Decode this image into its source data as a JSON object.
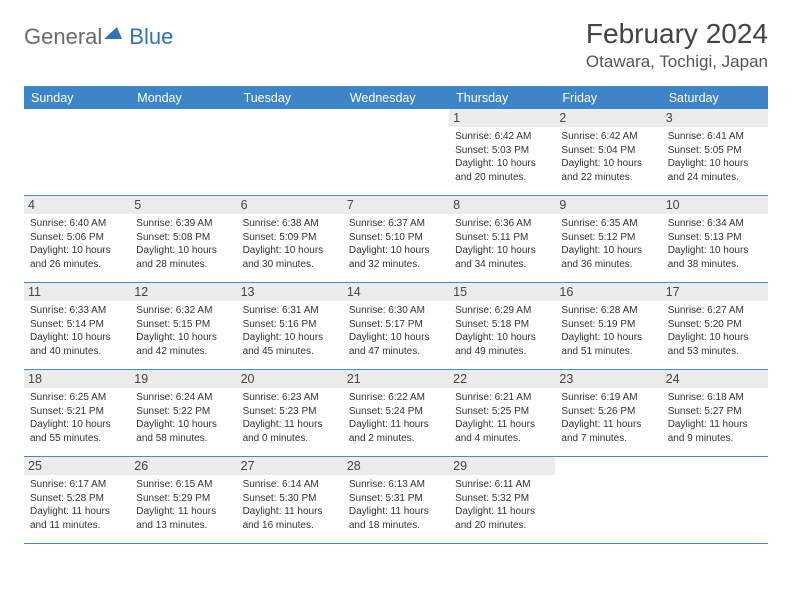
{
  "brand": {
    "text1": "General",
    "text2": "Blue"
  },
  "title": "February 2024",
  "location": "Otawara, Tochigi, Japan",
  "colors": {
    "header_bg": "#3d85c6",
    "border": "#4a89c5",
    "daynum_bg": "#ececec",
    "text": "#333333",
    "brand_gray": "#6b6b6b",
    "brand_blue": "#2f74b5"
  },
  "day_headers": [
    "Sunday",
    "Monday",
    "Tuesday",
    "Wednesday",
    "Thursday",
    "Friday",
    "Saturday"
  ],
  "weeks": [
    [
      {
        "day": "",
        "sunrise": "",
        "sunset": "",
        "daylight": ""
      },
      {
        "day": "",
        "sunrise": "",
        "sunset": "",
        "daylight": ""
      },
      {
        "day": "",
        "sunrise": "",
        "sunset": "",
        "daylight": ""
      },
      {
        "day": "",
        "sunrise": "",
        "sunset": "",
        "daylight": ""
      },
      {
        "day": "1",
        "sunrise": "Sunrise: 6:42 AM",
        "sunset": "Sunset: 5:03 PM",
        "daylight": "Daylight: 10 hours and 20 minutes."
      },
      {
        "day": "2",
        "sunrise": "Sunrise: 6:42 AM",
        "sunset": "Sunset: 5:04 PM",
        "daylight": "Daylight: 10 hours and 22 minutes."
      },
      {
        "day": "3",
        "sunrise": "Sunrise: 6:41 AM",
        "sunset": "Sunset: 5:05 PM",
        "daylight": "Daylight: 10 hours and 24 minutes."
      }
    ],
    [
      {
        "day": "4",
        "sunrise": "Sunrise: 6:40 AM",
        "sunset": "Sunset: 5:06 PM",
        "daylight": "Daylight: 10 hours and 26 minutes."
      },
      {
        "day": "5",
        "sunrise": "Sunrise: 6:39 AM",
        "sunset": "Sunset: 5:08 PM",
        "daylight": "Daylight: 10 hours and 28 minutes."
      },
      {
        "day": "6",
        "sunrise": "Sunrise: 6:38 AM",
        "sunset": "Sunset: 5:09 PM",
        "daylight": "Daylight: 10 hours and 30 minutes."
      },
      {
        "day": "7",
        "sunrise": "Sunrise: 6:37 AM",
        "sunset": "Sunset: 5:10 PM",
        "daylight": "Daylight: 10 hours and 32 minutes."
      },
      {
        "day": "8",
        "sunrise": "Sunrise: 6:36 AM",
        "sunset": "Sunset: 5:11 PM",
        "daylight": "Daylight: 10 hours and 34 minutes."
      },
      {
        "day": "9",
        "sunrise": "Sunrise: 6:35 AM",
        "sunset": "Sunset: 5:12 PM",
        "daylight": "Daylight: 10 hours and 36 minutes."
      },
      {
        "day": "10",
        "sunrise": "Sunrise: 6:34 AM",
        "sunset": "Sunset: 5:13 PM",
        "daylight": "Daylight: 10 hours and 38 minutes."
      }
    ],
    [
      {
        "day": "11",
        "sunrise": "Sunrise: 6:33 AM",
        "sunset": "Sunset: 5:14 PM",
        "daylight": "Daylight: 10 hours and 40 minutes."
      },
      {
        "day": "12",
        "sunrise": "Sunrise: 6:32 AM",
        "sunset": "Sunset: 5:15 PM",
        "daylight": "Daylight: 10 hours and 42 minutes."
      },
      {
        "day": "13",
        "sunrise": "Sunrise: 6:31 AM",
        "sunset": "Sunset: 5:16 PM",
        "daylight": "Daylight: 10 hours and 45 minutes."
      },
      {
        "day": "14",
        "sunrise": "Sunrise: 6:30 AM",
        "sunset": "Sunset: 5:17 PM",
        "daylight": "Daylight: 10 hours and 47 minutes."
      },
      {
        "day": "15",
        "sunrise": "Sunrise: 6:29 AM",
        "sunset": "Sunset: 5:18 PM",
        "daylight": "Daylight: 10 hours and 49 minutes."
      },
      {
        "day": "16",
        "sunrise": "Sunrise: 6:28 AM",
        "sunset": "Sunset: 5:19 PM",
        "daylight": "Daylight: 10 hours and 51 minutes."
      },
      {
        "day": "17",
        "sunrise": "Sunrise: 6:27 AM",
        "sunset": "Sunset: 5:20 PM",
        "daylight": "Daylight: 10 hours and 53 minutes."
      }
    ],
    [
      {
        "day": "18",
        "sunrise": "Sunrise: 6:25 AM",
        "sunset": "Sunset: 5:21 PM",
        "daylight": "Daylight: 10 hours and 55 minutes."
      },
      {
        "day": "19",
        "sunrise": "Sunrise: 6:24 AM",
        "sunset": "Sunset: 5:22 PM",
        "daylight": "Daylight: 10 hours and 58 minutes."
      },
      {
        "day": "20",
        "sunrise": "Sunrise: 6:23 AM",
        "sunset": "Sunset: 5:23 PM",
        "daylight": "Daylight: 11 hours and 0 minutes."
      },
      {
        "day": "21",
        "sunrise": "Sunrise: 6:22 AM",
        "sunset": "Sunset: 5:24 PM",
        "daylight": "Daylight: 11 hours and 2 minutes."
      },
      {
        "day": "22",
        "sunrise": "Sunrise: 6:21 AM",
        "sunset": "Sunset: 5:25 PM",
        "daylight": "Daylight: 11 hours and 4 minutes."
      },
      {
        "day": "23",
        "sunrise": "Sunrise: 6:19 AM",
        "sunset": "Sunset: 5:26 PM",
        "daylight": "Daylight: 11 hours and 7 minutes."
      },
      {
        "day": "24",
        "sunrise": "Sunrise: 6:18 AM",
        "sunset": "Sunset: 5:27 PM",
        "daylight": "Daylight: 11 hours and 9 minutes."
      }
    ],
    [
      {
        "day": "25",
        "sunrise": "Sunrise: 6:17 AM",
        "sunset": "Sunset: 5:28 PM",
        "daylight": "Daylight: 11 hours and 11 minutes."
      },
      {
        "day": "26",
        "sunrise": "Sunrise: 6:15 AM",
        "sunset": "Sunset: 5:29 PM",
        "daylight": "Daylight: 11 hours and 13 minutes."
      },
      {
        "day": "27",
        "sunrise": "Sunrise: 6:14 AM",
        "sunset": "Sunset: 5:30 PM",
        "daylight": "Daylight: 11 hours and 16 minutes."
      },
      {
        "day": "28",
        "sunrise": "Sunrise: 6:13 AM",
        "sunset": "Sunset: 5:31 PM",
        "daylight": "Daylight: 11 hours and 18 minutes."
      },
      {
        "day": "29",
        "sunrise": "Sunrise: 6:11 AM",
        "sunset": "Sunset: 5:32 PM",
        "daylight": "Daylight: 11 hours and 20 minutes."
      },
      {
        "day": "",
        "sunrise": "",
        "sunset": "",
        "daylight": ""
      },
      {
        "day": "",
        "sunrise": "",
        "sunset": "",
        "daylight": ""
      }
    ]
  ]
}
